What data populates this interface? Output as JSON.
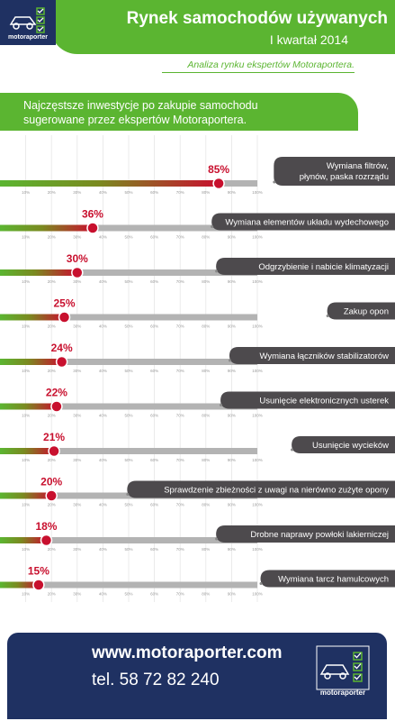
{
  "header": {
    "title": "Rynek samochodów używanych",
    "subtitle": "I kwartał 2014",
    "analysis": "Analiza rynku ekspertów Motoraportera.",
    "logo_text": "motoraporter"
  },
  "intro": {
    "line1": "Najczęstsze inwestycje po zakupie samochodu",
    "line2": "sugerowane przez ekspertów Motoraportera."
  },
  "colors": {
    "green": "#5bb531",
    "red": "#c8102e",
    "navy": "#1f3162",
    "gray_bar": "#b3b3b3",
    "label_bg": "#4d4a4d"
  },
  "chart_data": {
    "type": "bar",
    "orientation": "horizontal",
    "xlim": [
      0,
      100
    ],
    "tick_labels": [
      "10%",
      "20%",
      "30%",
      "40%",
      "50%",
      "60%",
      "70%",
      "80%",
      "90%",
      "100%"
    ],
    "categories": [
      "Wymiana filtrów, płynów, paska rozrządu",
      "Wymiana elementów układu wydechowego",
      "Odgrzybienie i nabicie klimatyzacji",
      "Zakup opon",
      "Wymiana łączników stabilizatorów",
      "Usunięcie elektronicznych  usterek",
      "Usunięcie wycieków",
      "Sprawdzenie zbieżności z uwagi na nierówno zużyte opony",
      "Drobne naprawy powłoki lakierniczej",
      "Wymiana tarcz hamulcowych"
    ],
    "label_lines": [
      [
        "Wymiana filtrów,",
        "płynów, paska rozrządu"
      ],
      [
        "Wymiana elementów układu wydechowego"
      ],
      [
        "Odgrzybienie i nabicie klimatyzacji"
      ],
      [
        "Zakup opon"
      ],
      [
        "Wymiana łączników stabilizatorów"
      ],
      [
        "Usunięcie elektronicznych  usterek"
      ],
      [
        "Usunięcie wycieków"
      ],
      [
        "Sprawdzenie zbieżności z uwagi na nierówno zużyte opony"
      ],
      [
        "Drobne naprawy powłoki lakierniczej"
      ],
      [
        "Wymiana tarcz hamulcowych"
      ]
    ],
    "values": [
      85,
      36,
      30,
      25,
      24,
      22,
      21,
      20,
      18,
      15
    ],
    "value_labels": [
      "85%",
      "36%",
      "30%",
      "25%",
      "24%",
      "22%",
      "21%",
      "20%",
      "18%",
      "15%"
    ]
  },
  "footer": {
    "url": "www.motoraporter.com",
    "tel": "tel. 58 72 82 240",
    "logo_text": "motoraporter"
  }
}
